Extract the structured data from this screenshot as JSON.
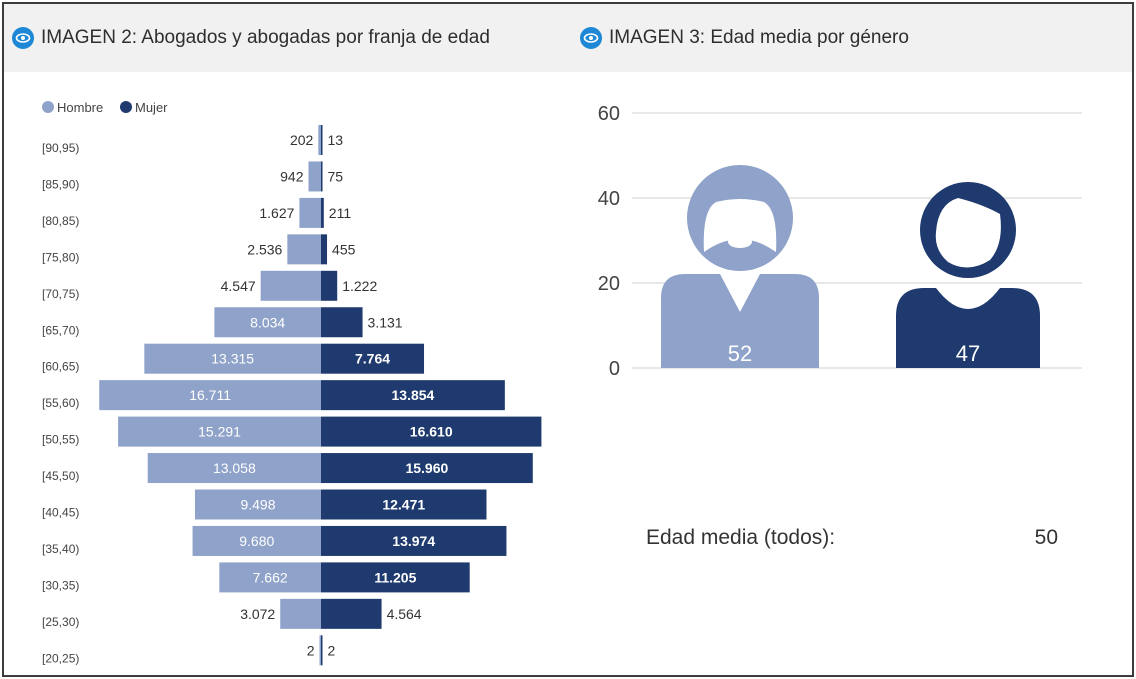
{
  "header": {
    "panel2_title": "IMAGEN 2: Abogados y abogadas por franja de edad",
    "panel3_title": "IMAGEN 3: Edad media por género",
    "icon": "eye-icon"
  },
  "colors": {
    "hombre": "#8fa2c9",
    "mujer": "#1f3a6e",
    "header_bg": "#f1f1f1",
    "icon": "#1e88d6",
    "grid": "#d0d0d0"
  },
  "chart_data": [
    {
      "type": "bar",
      "orientation": "horizontal-pyramid",
      "legend": [
        "Hombre",
        "Mujer"
      ],
      "legend_position": "top-left",
      "categories": [
        "[90,95)",
        "[85,90)",
        "[80,85)",
        "[75,80)",
        "[70,75)",
        "[65,70)",
        "[60,65)",
        "[55,60)",
        "[50,55)",
        "[45,50)",
        "[40,45)",
        "[35,40)",
        "[30,35)",
        "[25,30)",
        "[20,25)"
      ],
      "series": [
        {
          "name": "Hombre",
          "values": [
            202,
            942,
            1627,
            2536,
            4547,
            8034,
            13315,
            16711,
            15291,
            13058,
            9498,
            9680,
            7662,
            3072,
            2
          ],
          "labels": [
            "202",
            "942",
            "1.627",
            "2.536",
            "4.547",
            "8.034",
            "13.315",
            "16.711",
            "15.291",
            "13.058",
            "9.498",
            "9.680",
            "7.662",
            "3.072",
            "2"
          ]
        },
        {
          "name": "Mujer",
          "values": [
            13,
            75,
            211,
            455,
            1222,
            3131,
            7764,
            13854,
            16610,
            15960,
            12471,
            13974,
            11205,
            4564,
            2
          ],
          "labels": [
            "13",
            "75",
            "211",
            "455",
            "1.222",
            "3.131",
            "7.764",
            "13.854",
            "16.610",
            "15.960",
            "12.471",
            "13.974",
            "11.205",
            "4.564",
            "2"
          ]
        }
      ]
    },
    {
      "type": "bar",
      "pictogram": true,
      "categories": [
        "Hombre",
        "Mujer"
      ],
      "values": [
        52,
        47
      ],
      "value_labels": [
        "52",
        "47"
      ],
      "ylim": [
        0,
        60
      ],
      "yticks": [
        "0",
        "20",
        "40",
        "60"
      ],
      "grid": true,
      "icons": [
        "man-icon",
        "woman-icon"
      ],
      "summary_label": "Edad media (todos):",
      "summary_value": "50"
    }
  ]
}
